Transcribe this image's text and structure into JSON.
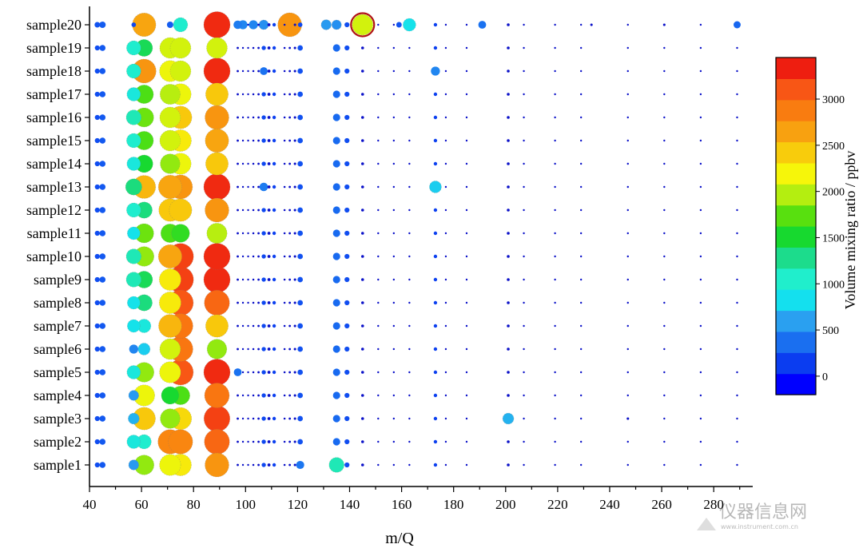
{
  "chart_data": {
    "type": "scatter",
    "subtype": "bubble",
    "title": "",
    "xlabel": "m/Q",
    "ylabel": "",
    "xlim": [
      40,
      295
    ],
    "xticks": [
      "40",
      "60",
      "80",
      "100",
      "120",
      "140",
      "160",
      "180",
      "200",
      "220",
      "240",
      "260",
      "280"
    ],
    "xtick_values": [
      40,
      60,
      80,
      100,
      120,
      140,
      160,
      180,
      200,
      220,
      240,
      260,
      280
    ],
    "categories": [
      "sample1",
      "sample2",
      "sample3",
      "sample4",
      "sample5",
      "sample6",
      "sample7",
      "sample8",
      "sample9",
      "sample10",
      "sample11",
      "sample12",
      "sample13",
      "sample14",
      "sample15",
      "sample16",
      "sample17",
      "sample18",
      "sample19",
      "sample20"
    ],
    "colorbar": {
      "label": "Volume mixing ratio / ppbv",
      "min": -200,
      "max": 3450,
      "ticks": [
        "0",
        "500",
        "1000",
        "1500",
        "2000",
        "2500",
        "3000"
      ],
      "tick_values": [
        0,
        500,
        1000,
        1500,
        2000,
        2500,
        3000
      ],
      "colors": [
        "#0000ff",
        "#0b3df0",
        "#1a6ff0",
        "#2aa0f0",
        "#14e0ee",
        "#20eecc",
        "#1cdc8c",
        "#17d92f",
        "#58e00f",
        "#b4ee10",
        "#f6f60a",
        "#f8cc0c",
        "#f8a110",
        "#f97c10",
        "#f85615",
        "#ee1e10"
      ]
    },
    "series_note": "Bubble size and color both encode the volume mixing ratio.",
    "grid": false,
    "legend": "colorbar right"
  },
  "watermark": {
    "text": "仪器信息网",
    "subtext": "www.instrument.com.cn"
  }
}
